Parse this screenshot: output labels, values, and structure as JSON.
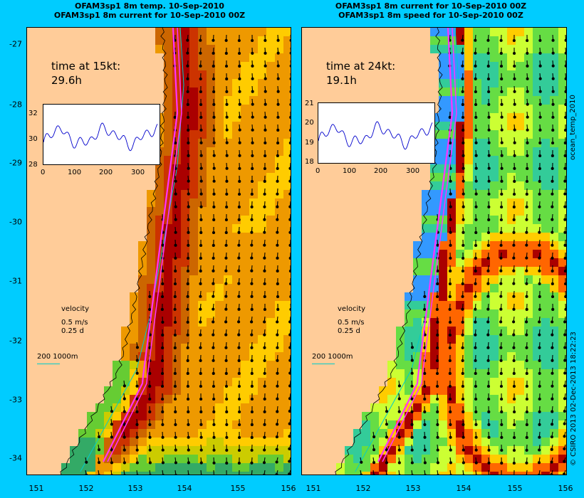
{
  "panels": [
    {
      "title_line1": "OFAM3sp1 8m temp. 10-Sep-2010",
      "title_line2": "OFAM3sp1 8m current for 10-Sep-2010 00Z",
      "time_label": "time at 15kt:",
      "time_value": "29.6h",
      "inset_y_ticks": [
        "32",
        "30",
        "28"
      ],
      "inset_x_ticks": [
        "0",
        "100",
        "200",
        "300"
      ],
      "inset_ylim": [
        28,
        33
      ],
      "side_label": "",
      "field_palette": "temperature"
    },
    {
      "title_line1": "OFAM3sp1 8m current for 10-Sep-2010 00Z",
      "title_line2": "OFAM3sp1 8m speed for 10-Sep-2010 00Z",
      "time_label": "time at 24kt:",
      "time_value": "19.1h",
      "inset_y_ticks": [
        "21",
        "20",
        "19",
        "18"
      ],
      "inset_x_ticks": [
        "0",
        "100",
        "200",
        "300"
      ],
      "inset_ylim": [
        18,
        21
      ],
      "side_label": "ocean_temp_2010",
      "field_palette": "speed"
    }
  ],
  "y_ticks": [
    "-27",
    "-28",
    "-29",
    "-30",
    "-31",
    "-32",
    "-33",
    "-34"
  ],
  "x_ticks": [
    "151",
    "152",
    "153",
    "154",
    "155",
    "156"
  ],
  "velocity_legend": {
    "title": "velocity",
    "speed": "0.5 m/s",
    "duration": "0.25 d"
  },
  "depth_legend": "200  1000m",
  "right_edge_label": "ocean_temp_2010",
  "credit": "© CSIRO 2013   02-Dec-2013 18:22:23",
  "colors": {
    "background": "#00ccff",
    "land": "#ffcc99",
    "route": "#ff33ff",
    "inset_line": "#0000cc",
    "contour": "#00cccc"
  }
}
